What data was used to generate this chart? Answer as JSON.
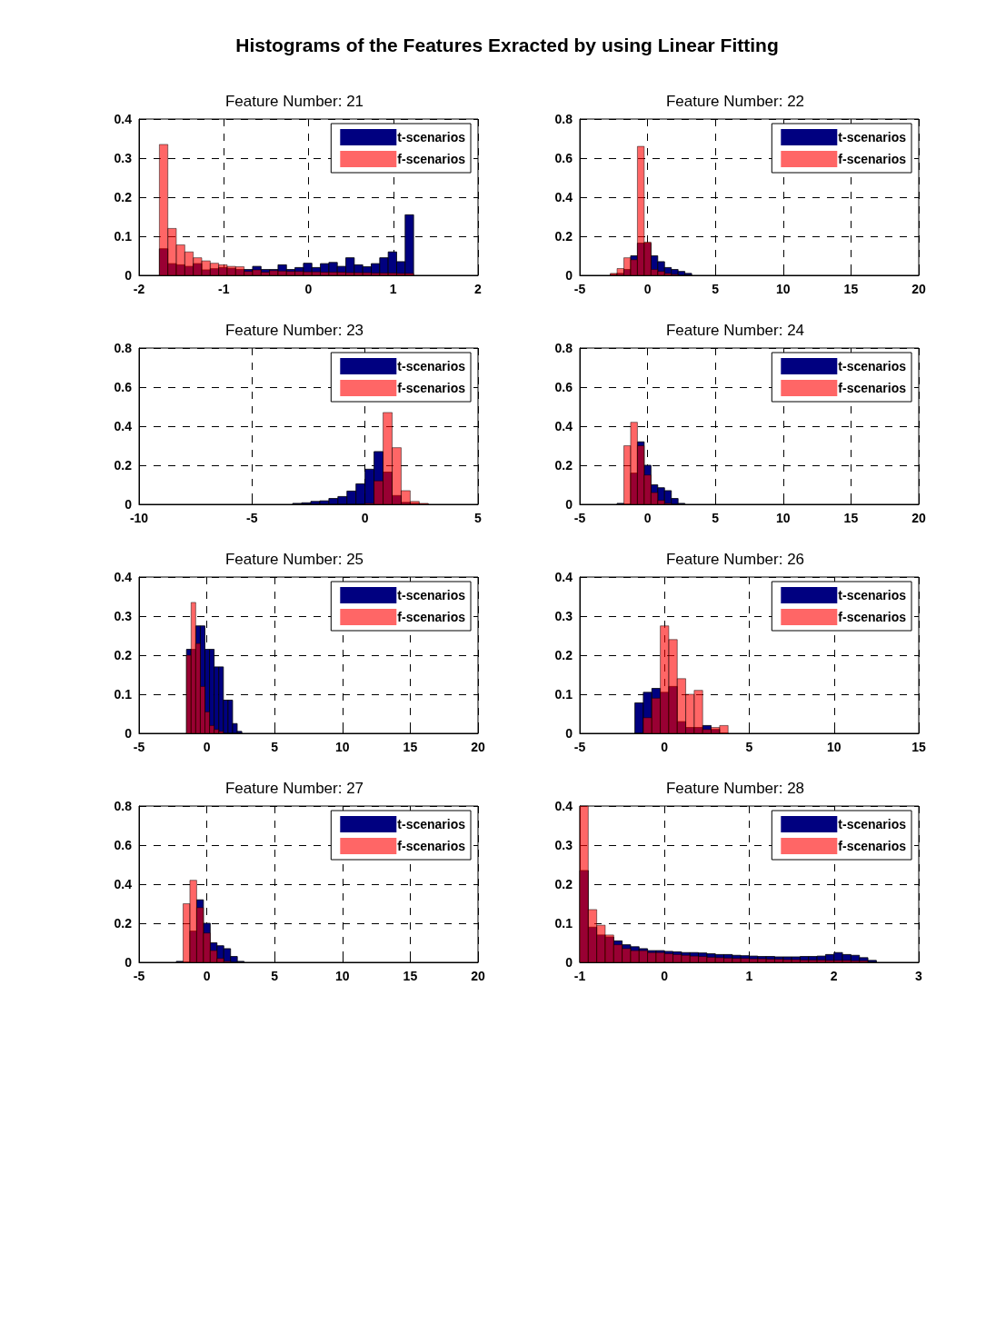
{
  "chart_data": [
    {
      "type": "other",
      "title": "Histograms of the Features Exracted by using Linear Fitting"
    },
    {
      "type": "histogram",
      "title": "Feature Number: 21",
      "bins": [
        -1.76,
        -1.66,
        -1.56,
        -1.46,
        -1.36,
        -1.26,
        -1.16,
        -1.06,
        -0.96,
        -0.86,
        -0.76,
        -0.66,
        -0.56,
        -0.46,
        -0.36,
        -0.26,
        -0.16,
        -0.06,
        0.04,
        0.14,
        0.24,
        0.34,
        0.44,
        0.54,
        0.64,
        0.74,
        0.84,
        0.94,
        1.04,
        1.14,
        1.24
      ],
      "series": [
        {
          "name": "t-scenarios",
          "color": "#000080",
          "values": [
            0.068,
            0.03,
            0.027,
            0.023,
            0.03,
            0.014,
            0.017,
            0.02,
            0.018,
            0.015,
            0.015,
            0.023,
            0.015,
            0.015,
            0.027,
            0.015,
            0.02,
            0.031,
            0.02,
            0.03,
            0.033,
            0.023,
            0.045,
            0.027,
            0.022,
            0.03,
            0.045,
            0.06,
            0.035,
            0.155
          ]
        },
        {
          "name": "f-scenarios",
          "color": "#ff0000",
          "values": [
            0.335,
            0.12,
            0.078,
            0.06,
            0.045,
            0.037,
            0.031,
            0.027,
            0.023,
            0.022,
            0.01,
            0.014,
            0.008,
            0.012,
            0.011,
            0.01,
            0.01,
            0.009,
            0.009,
            0.008,
            0.008,
            0.008,
            0.007,
            0.007,
            0.007,
            0.006,
            0.006,
            0.006,
            0.005,
            0.005
          ]
        }
      ],
      "xlim": [
        -2,
        2
      ],
      "xticks": [
        -2,
        -1,
        0,
        1,
        2
      ],
      "ylim": [
        0,
        0.4
      ],
      "yticks": [
        0,
        0.1,
        0.2,
        0.3,
        0.4
      ],
      "grid": true,
      "legend": "top right"
    },
    {
      "type": "histogram",
      "title": "Feature Number: 22",
      "bins": [
        -2.75,
        -2.25,
        -1.75,
        -1.25,
        -0.75,
        -0.25,
        0.25,
        0.75,
        1.25,
        1.75,
        2.25,
        2.75,
        3.25
      ],
      "series": [
        {
          "name": "t-scenarios",
          "color": "#000080",
          "values": [
            0.005,
            0.01,
            0.03,
            0.1,
            0.165,
            0.165,
            0.1,
            0.07,
            0.04,
            0.03,
            0.02,
            0.01
          ]
        },
        {
          "name": "f-scenarios",
          "color": "#ff0000",
          "values": [
            0.01,
            0.035,
            0.09,
            0.08,
            0.66,
            0.17,
            0.03,
            0.02,
            0.01,
            0.005,
            0,
            0
          ]
        }
      ],
      "xlim": [
        -5,
        20
      ],
      "xticks": [
        -5,
        0,
        5,
        10,
        15,
        20
      ],
      "ylim": [
        0,
        0.8
      ],
      "yticks": [
        0,
        0.2,
        0.4,
        0.6,
        0.8
      ],
      "grid": true,
      "legend": "top right"
    },
    {
      "type": "histogram",
      "title": "Feature Number: 23",
      "bins": [
        -3.2,
        -2.8,
        -2.4,
        -2,
        -1.6,
        -1.2,
        -0.8,
        -0.4,
        0,
        0.4,
        0.8,
        1.2,
        1.6,
        2,
        2.4,
        2.8
      ],
      "series": [
        {
          "name": "t-scenarios",
          "color": "#000080",
          "values": [
            0.005,
            0.008,
            0.015,
            0.018,
            0.03,
            0.04,
            0.068,
            0.105,
            0.18,
            0.27,
            0.165,
            0.045,
            0.01,
            0.005,
            0
          ]
        },
        {
          "name": "f-scenarios",
          "color": "#ff0000",
          "values": [
            0,
            0,
            0,
            0,
            0,
            0,
            0,
            0,
            0.005,
            0.12,
            0.47,
            0.29,
            0.07,
            0.015,
            0.005
          ]
        }
      ],
      "xlim": [
        -10,
        5
      ],
      "xticks": [
        -10,
        -5,
        0,
        5
      ],
      "ylim": [
        0,
        0.8
      ],
      "yticks": [
        0,
        0.2,
        0.4,
        0.6,
        0.8
      ],
      "grid": true,
      "legend": "top right"
    },
    {
      "type": "histogram",
      "title": "Feature Number: 24",
      "bins": [
        -2.25,
        -1.75,
        -1.25,
        -0.75,
        -0.25,
        0.25,
        0.75,
        1.25,
        1.75,
        2.25,
        2.75
      ],
      "series": [
        {
          "name": "t-scenarios",
          "color": "#000080",
          "values": [
            0.005,
            0,
            0.16,
            0.32,
            0.2,
            0.1,
            0.085,
            0.07,
            0.03,
            0.005
          ]
        },
        {
          "name": "f-scenarios",
          "color": "#ff0000",
          "values": [
            0,
            0.3,
            0.42,
            0.3,
            0.15,
            0.06,
            0.02,
            0.005,
            0,
            0
          ]
        }
      ],
      "xlim": [
        -5,
        20
      ],
      "xticks": [
        -5,
        0,
        5,
        10,
        15,
        20
      ],
      "ylim": [
        0,
        0.8
      ],
      "yticks": [
        0,
        0.2,
        0.4,
        0.6,
        0.8
      ],
      "grid": true,
      "legend": "top right"
    },
    {
      "type": "histogram",
      "title": "Feature Number: 25",
      "bins": [
        -1.5,
        -1.16,
        -0.82,
        -0.48,
        -0.14,
        0.2,
        0.54,
        0.88,
        1.22,
        1.56,
        1.9,
        2.24,
        2.58
      ],
      "series": [
        {
          "name": "t-scenarios",
          "color": "#000080",
          "values": [
            0.215,
            0.215,
            0.275,
            0.275,
            0.215,
            0.215,
            0.17,
            0.17,
            0.085,
            0.085,
            0.025,
            0.005
          ]
        },
        {
          "name": "f-scenarios",
          "color": "#ff0000",
          "values": [
            0.2,
            0.335,
            0.23,
            0.12,
            0.055,
            0.02,
            0.01,
            0.005,
            0,
            0,
            0,
            0
          ]
        }
      ],
      "xlim": [
        -5,
        20
      ],
      "xticks": [
        -5,
        0,
        5,
        10,
        15,
        20
      ],
      "ylim": [
        0,
        0.4
      ],
      "yticks": [
        0,
        0.1,
        0.2,
        0.3,
        0.4
      ],
      "grid": true,
      "legend": "top right"
    },
    {
      "type": "histogram",
      "title": "Feature Number: 26",
      "bins": [
        -1.75,
        -1.25,
        -0.75,
        -0.25,
        0.25,
        0.75,
        1.25,
        1.75,
        2.25,
        2.75,
        3.25,
        3.75
      ],
      "series": [
        {
          "name": "t-scenarios",
          "color": "#000080",
          "values": [
            0.078,
            0.105,
            0.115,
            0.105,
            0.12,
            0.03,
            0.015,
            0.015,
            0.02,
            0.01,
            0
          ]
        },
        {
          "name": "f-scenarios",
          "color": "#ff0000",
          "values": [
            0,
            0.04,
            0.09,
            0.275,
            0.24,
            0.14,
            0.1,
            0.11,
            0.01,
            0.015,
            0.02
          ]
        }
      ],
      "xlim": [
        -5,
        15
      ],
      "xticks": [
        -5,
        0,
        5,
        10,
        15
      ],
      "ylim": [
        0,
        0.4
      ],
      "yticks": [
        0,
        0.1,
        0.2,
        0.3,
        0.4
      ],
      "grid": true,
      "legend": "top right"
    },
    {
      "type": "histogram",
      "title": "Feature Number: 27",
      "bins": [
        -2.25,
        -1.75,
        -1.25,
        -0.75,
        -0.25,
        0.25,
        0.75,
        1.25,
        1.75,
        2.25,
        2.75
      ],
      "series": [
        {
          "name": "t-scenarios",
          "color": "#000080",
          "values": [
            0.005,
            0,
            0.16,
            0.32,
            0.2,
            0.1,
            0.085,
            0.07,
            0.03,
            0.005
          ]
        },
        {
          "name": "f-scenarios",
          "color": "#ff0000",
          "values": [
            0,
            0.3,
            0.42,
            0.28,
            0.15,
            0.06,
            0.02,
            0.005,
            0,
            0
          ]
        }
      ],
      "xlim": [
        -5,
        20
      ],
      "xticks": [
        -5,
        0,
        5,
        10,
        15,
        20
      ],
      "ylim": [
        0,
        0.8
      ],
      "yticks": [
        0,
        0.2,
        0.4,
        0.6,
        0.8
      ],
      "grid": true,
      "legend": "top right"
    },
    {
      "type": "histogram",
      "title": "Feature Number: 28",
      "bins": [
        -1,
        -0.9,
        -0.8,
        -0.7,
        -0.6,
        -0.5,
        -0.4,
        -0.3,
        -0.2,
        -0.1,
        0,
        0.1,
        0.2,
        0.3,
        0.4,
        0.5,
        0.6,
        0.7,
        0.8,
        0.9,
        1,
        1.1,
        1.2,
        1.3,
        1.4,
        1.5,
        1.6,
        1.7,
        1.8,
        1.9,
        2,
        2.1,
        2.2,
        2.3,
        2.4,
        2.5
      ],
      "series": [
        {
          "name": "t-scenarios",
          "color": "#000080",
          "values": [
            0.235,
            0.09,
            0.07,
            0.065,
            0.055,
            0.045,
            0.04,
            0.035,
            0.03,
            0.03,
            0.028,
            0.027,
            0.025,
            0.025,
            0.024,
            0.022,
            0.02,
            0.02,
            0.018,
            0.017,
            0.016,
            0.015,
            0.015,
            0.014,
            0.014,
            0.014,
            0.015,
            0.015,
            0.016,
            0.02,
            0.025,
            0.02,
            0.018,
            0.012,
            0.005
          ]
        },
        {
          "name": "f-scenarios",
          "color": "#ff0000",
          "values": [
            0.4,
            0.135,
            0.095,
            0.07,
            0.045,
            0.035,
            0.03,
            0.03,
            0.025,
            0.025,
            0.022,
            0.02,
            0.018,
            0.016,
            0.015,
            0.013,
            0.012,
            0.011,
            0.01,
            0.01,
            0.009,
            0.009,
            0.008,
            0.008,
            0.007,
            0.007,
            0.006,
            0.006,
            0.006,
            0.005,
            0.005,
            0.005,
            0.004,
            0.004,
            0
          ]
        }
      ],
      "xlim": [
        -1,
        3
      ],
      "xticks": [
        -1,
        0,
        1,
        2,
        3
      ],
      "ylim": [
        0,
        0.4
      ],
      "yticks": [
        0,
        0.1,
        0.2,
        0.3,
        0.4
      ],
      "grid": true,
      "legend": "top right"
    }
  ]
}
